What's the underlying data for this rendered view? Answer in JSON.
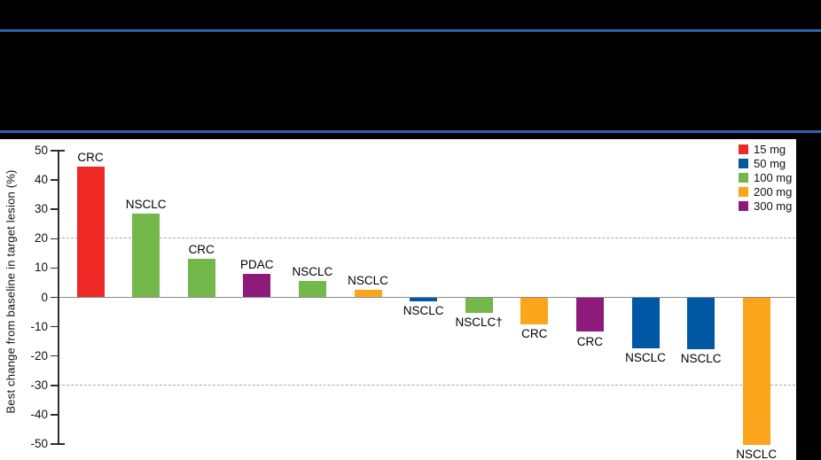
{
  "header": {
    "rule_color": "#2b64ae",
    "redacted": true
  },
  "chart_data": {
    "type": "bar",
    "title": "",
    "xlabel": "",
    "ylabel": "Best change from baseline in target lesion (%)",
    "ylim": [
      -50,
      50
    ],
    "yticks": [
      50,
      40,
      30,
      20,
      10,
      0,
      -10,
      -20,
      -30,
      -40,
      -50
    ],
    "reference_lines": [
      20,
      -30
    ],
    "grid": "dashed-thresholds-only",
    "legend": {
      "position": "top-right",
      "entries": [
        {
          "label": "15 mg",
          "color": "#ee2824"
        },
        {
          "label": "50 mg",
          "color": "#0057a3"
        },
        {
          "label": "100 mg",
          "color": "#74b74a"
        },
        {
          "label": "200 mg",
          "color": "#faa51b"
        },
        {
          "label": "300 mg",
          "color": "#8e1b7c"
        }
      ]
    },
    "bars": [
      {
        "label": "CRC",
        "dose": "15 mg",
        "value": 44.5
      },
      {
        "label": "NSCLC",
        "dose": "100 mg",
        "value": 28.5
      },
      {
        "label": "CRC",
        "dose": "100 mg",
        "value": 13
      },
      {
        "label": "PDAC",
        "dose": "300 mg",
        "value": 8
      },
      {
        "label": "NSCLC",
        "dose": "100 mg",
        "value": 5.5
      },
      {
        "label": "NSCLC",
        "dose": "200 mg",
        "value": 2.5
      },
      {
        "label": "NSCLC",
        "dose": "50 mg",
        "value": -1
      },
      {
        "label": "NSCLC†",
        "dose": "100 mg",
        "value": -5
      },
      {
        "label": "CRC",
        "dose": "200 mg",
        "value": -9
      },
      {
        "label": "CRC",
        "dose": "300 mg",
        "value": -11.5
      },
      {
        "label": "NSCLC",
        "dose": "50 mg",
        "value": -17
      },
      {
        "label": "NSCLC",
        "dose": "50 mg",
        "value": -17.5
      },
      {
        "label": "NSCLC",
        "dose": "200 mg",
        "value": -50
      }
    ]
  }
}
